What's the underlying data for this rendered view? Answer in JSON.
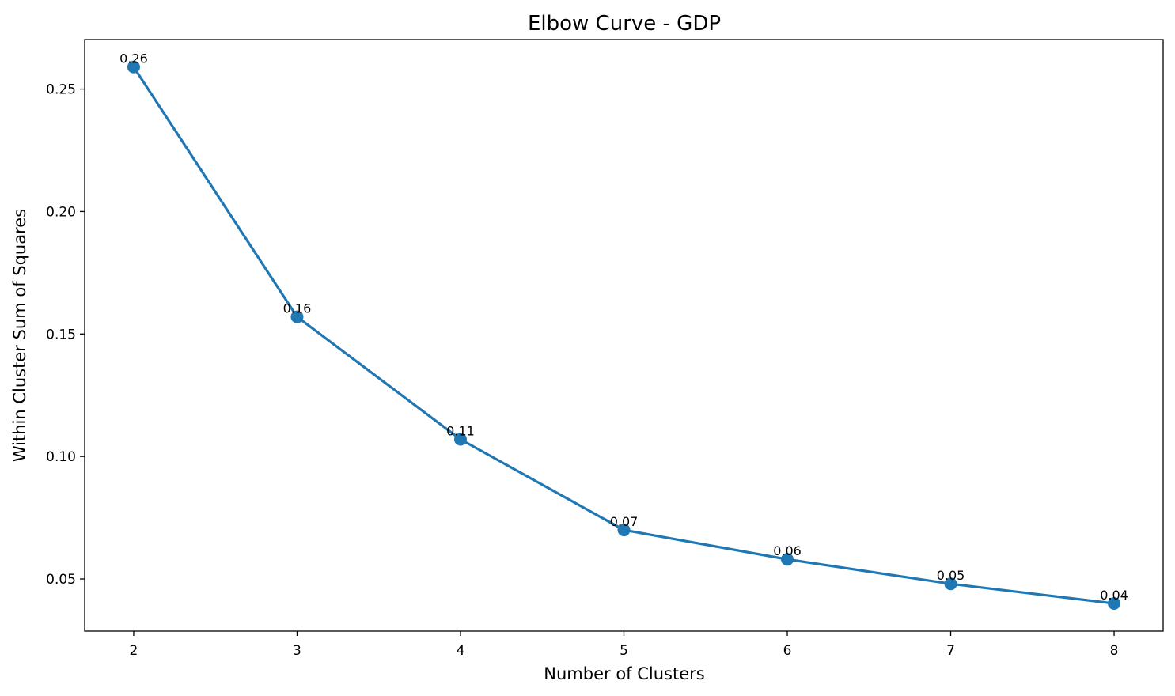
{
  "chart_data": {
    "type": "line",
    "title": "Elbow Curve - GDP",
    "xlabel": "Number of Clusters",
    "ylabel": "Within Cluster Sum of Squares",
    "x": [
      2,
      3,
      4,
      5,
      6,
      7,
      8
    ],
    "series": [
      {
        "values": [
          0.259,
          0.157,
          0.107,
          0.07,
          0.058,
          0.048,
          0.04
        ],
        "data_labels": [
          "0.26",
          "0.16",
          "0.11",
          "0.07",
          "0.06",
          "0.05",
          "0.04"
        ],
        "color": "#1f77b4",
        "marker": "circle"
      }
    ],
    "xlim": [
      1.7,
      8.3
    ],
    "ylim": [
      0.0287,
      0.2702
    ],
    "x_ticks": [
      2,
      3,
      4,
      5,
      6,
      7,
      8
    ],
    "x_tick_labels": [
      "2",
      "3",
      "4",
      "5",
      "6",
      "7",
      "8"
    ],
    "y_ticks": [
      0.05,
      0.1,
      0.15,
      0.2,
      0.25
    ],
    "y_tick_labels": [
      "0.05",
      "0.10",
      "0.15",
      "0.20",
      "0.25"
    ],
    "grid": false,
    "legend": "none"
  }
}
